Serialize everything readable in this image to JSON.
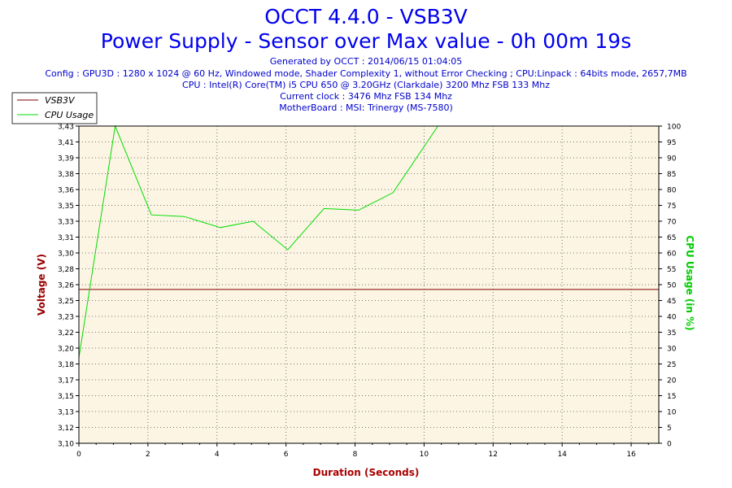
{
  "titles": {
    "main": "OCCT 4.4.0 - VSB3V",
    "sub": "Power Supply - Sensor over Max value - 0h 00m 19s"
  },
  "info_lines": [
    "Generated by OCCT : 2014/06/15 01:04:05",
    "Config : GPU3D : 1280 x 1024 @ 60 Hz, Windowed mode, Shader Complexity 1, without Error Checking ; CPU:Linpack : 64bits mode, 2657,7MB",
    "CPU : Intel(R) Core(TM) i5 CPU 650 @ 3.20GHz (Clarkdale) 3200 Mhz FSB 133 Mhz",
    "Current clock : 3476 Mhz FSB 134 Mhz",
    "MotherBoard : MSI: Trinergy (MS-7580)"
  ],
  "colors": {
    "voltage": "#800000",
    "cpu": "#00dd00",
    "plot_bg": "#fcf5e4",
    "axis_label_left": "#990000",
    "axis_label_right": "#00cc00",
    "x_label": "#aa0000",
    "title": "#0000ee"
  },
  "chart_data": {
    "type": "line",
    "xlabel": "Duration (Seconds)",
    "ylabel_left": "Voltage (V)",
    "ylabel_right": "CPU Usage (in %)",
    "xlim": [
      0,
      16.8
    ],
    "ylim_left": [
      3.1,
      3.43
    ],
    "ylim_right": [
      0,
      100
    ],
    "x_ticks": [
      0,
      2,
      4,
      6,
      8,
      10,
      12,
      14,
      16
    ],
    "y_ticks_left": [
      "3,10",
      "3,12",
      "3,13",
      "3,15",
      "3,17",
      "3,18",
      "3,20",
      "3,22",
      "3,23",
      "3,25",
      "3,26",
      "3,28",
      "3,30",
      "3,31",
      "3,33",
      "3,35",
      "3,36",
      "3,38",
      "3,39",
      "3,41",
      "3,43"
    ],
    "y_ticks_right": [
      0,
      5,
      10,
      15,
      20,
      25,
      30,
      35,
      40,
      45,
      50,
      55,
      60,
      65,
      70,
      75,
      80,
      85,
      90,
      95,
      100
    ],
    "grid": true,
    "legend_position": "top-left",
    "series": [
      {
        "name": "VSB3V",
        "axis": "left",
        "x": [
          0,
          16.8
        ],
        "y": [
          3.26,
          3.26
        ]
      },
      {
        "name": "CPU Usage",
        "axis": "right",
        "x": [
          0,
          1.05,
          2.1,
          3.05,
          4.1,
          5.05,
          6.05,
          7.1,
          8.1,
          9.1,
          10.4,
          14.2
        ],
        "y": [
          27,
          100,
          72,
          71.5,
          68,
          70,
          61,
          74,
          73.5,
          79,
          100,
          100
        ]
      }
    ]
  }
}
